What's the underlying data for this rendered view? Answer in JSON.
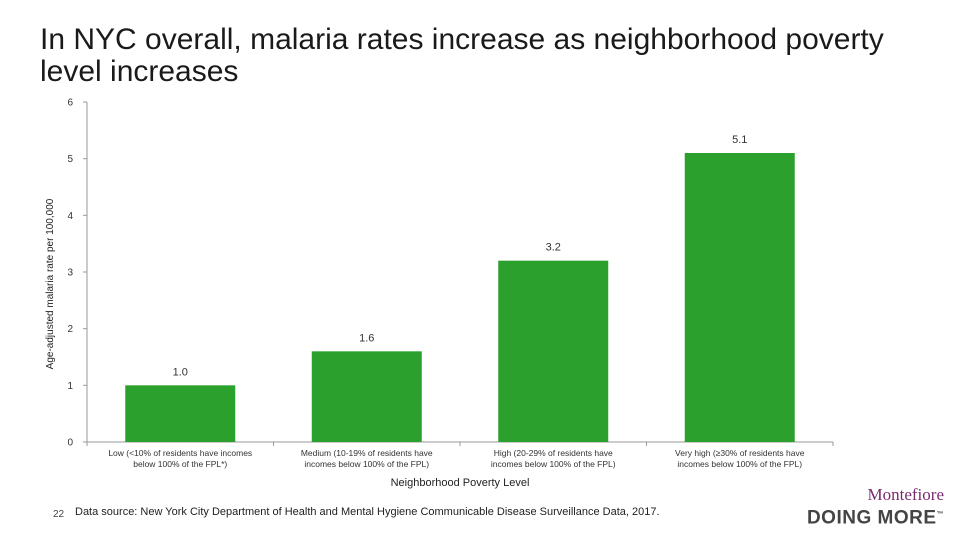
{
  "slide": {
    "title": "In NYC overall, malaria rates increase as neighborhood poverty level increases",
    "page_number": "22",
    "source": "Data source: New York City Department of Health and Mental Hygiene Communicable Disease Surveillance Data, 2017."
  },
  "logo": {
    "top": "Montefiore",
    "bottom": "DOING MORE",
    "tm": "™"
  },
  "chart_data": {
    "type": "bar",
    "categories": [
      "Low (<10% of residents have incomes below 100% of the FPL*)",
      "Medium (10-19% of residents have incomes below 100% of the FPL)",
      "High (20-29% of residents have incomes below 100% of the FPL)",
      "Very high (≥30% of residents have incomes below 100% of the FPL)"
    ],
    "values": [
      1.0,
      1.6,
      3.2,
      5.1
    ],
    "value_labels": [
      "1.0",
      "1.6",
      "3.2",
      "5.1"
    ],
    "xlabel": "Neighborhood Poverty Level",
    "ylabel": "Age-adjusted malaria rate per 100,000",
    "ylim": [
      0,
      6
    ],
    "yticks": [
      0,
      1,
      2,
      3,
      4,
      5,
      6
    ],
    "bar_color": "#2ca02c",
    "grid": false,
    "legend": "none"
  }
}
